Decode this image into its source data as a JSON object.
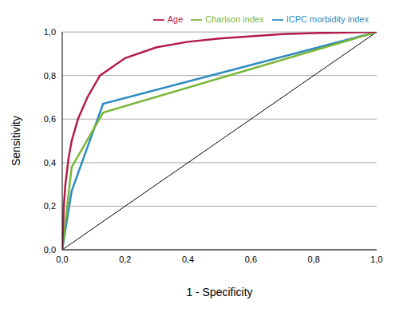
{
  "chart_data": {
    "type": "line",
    "x_label": "1 - Specificity",
    "y_label": "Sensitivity",
    "xlim": [
      0,
      1
    ],
    "ylim": [
      0,
      1
    ],
    "xticks": [
      {
        "value": 0,
        "label": "0,0"
      },
      {
        "value": 0.2,
        "label": "0,2"
      },
      {
        "value": 0.4,
        "label": "0,4"
      },
      {
        "value": 0.6,
        "label": "0,6"
      },
      {
        "value": 0.8,
        "label": "0,8"
      },
      {
        "value": 1,
        "label": "1,0"
      }
    ],
    "yticks": [
      {
        "value": 0,
        "label": "0,0"
      },
      {
        "value": 0.2,
        "label": "0,2"
      },
      {
        "value": 0.4,
        "label": "0,4"
      },
      {
        "value": 0.6,
        "label": "0,6"
      },
      {
        "value": 0.8,
        "label": "0,8"
      },
      {
        "value": 1,
        "label": "1,0"
      }
    ],
    "grid": true,
    "legend": "top right",
    "series": [
      {
        "name": "ICPC morbidity index",
        "color": "#2e8bc0",
        "x": [
          0,
          0.03,
          0.13,
          1
        ],
        "values": [
          0,
          0.27,
          0.67,
          1
        ]
      },
      {
        "name": "Charlson index",
        "color": "#7ab637",
        "x": [
          0,
          0.03,
          0.13,
          1
        ],
        "values": [
          0,
          0.38,
          0.63,
          1
        ]
      },
      {
        "name": "Age",
        "color": "#b31b48",
        "x": [
          0,
          0.005,
          0.01,
          0.02,
          0.03,
          0.05,
          0.08,
          0.12,
          0.2,
          0.3,
          0.4,
          0.5,
          0.6,
          0.7,
          0.8,
          0.9,
          1
        ],
        "values": [
          0,
          0.2,
          0.3,
          0.42,
          0.5,
          0.6,
          0.7,
          0.8,
          0.88,
          0.93,
          0.955,
          0.97,
          0.98,
          0.99,
          0.995,
          0.998,
          1
        ]
      }
    ]
  }
}
